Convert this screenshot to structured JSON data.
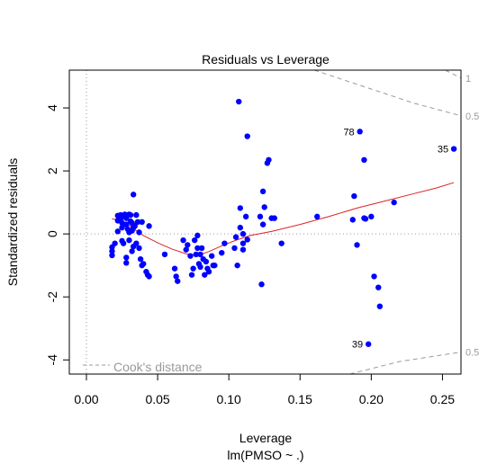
{
  "chart_data": {
    "type": "scatter",
    "title": "Residuals vs Leverage",
    "xlabel": "Leverage",
    "subtitle": "lm(PMSO ~ .)",
    "ylabel": "Standardized residuals",
    "xlim": [
      -0.012,
      0.263
    ],
    "ylim": [
      -4.45,
      5.2
    ],
    "x_ticks": [
      {
        "value": 0.0,
        "label": "0.00"
      },
      {
        "value": 0.05,
        "label": "0.05"
      },
      {
        "value": 0.1,
        "label": "0.10"
      },
      {
        "value": 0.15,
        "label": "0.15"
      },
      {
        "value": 0.2,
        "label": "0.20"
      },
      {
        "value": 0.25,
        "label": "0.25"
      }
    ],
    "y_ticks": [
      {
        "value": 4,
        "label": "4"
      },
      {
        "value": 2,
        "label": "2"
      },
      {
        "value": 0,
        "label": "0"
      },
      {
        "value": -2,
        "label": "-2"
      },
      {
        "value": -4,
        "label": "-4"
      }
    ],
    "point_color": "#0000ff",
    "smooth_color": "#dd2222",
    "reference_color": "#9a9a9a",
    "grid": false,
    "points": [
      [
        0.018,
        -0.42
      ],
      [
        0.018,
        -0.55
      ],
      [
        0.018,
        -0.68
      ],
      [
        0.02,
        -0.3
      ],
      [
        0.022,
        0.08
      ],
      [
        0.022,
        0.42
      ],
      [
        0.022,
        0.58
      ],
      [
        0.024,
        0.6
      ],
      [
        0.024,
        0.48
      ],
      [
        0.025,
        0.35
      ],
      [
        0.025,
        0.2
      ],
      [
        0.025,
        -0.22
      ],
      [
        0.026,
        -0.3
      ],
      [
        0.026,
        0.55
      ],
      [
        0.027,
        0.62
      ],
      [
        0.028,
        0.5
      ],
      [
        0.028,
        0.3
      ],
      [
        0.028,
        -0.75
      ],
      [
        0.028,
        -0.92
      ],
      [
        0.029,
        0.15
      ],
      [
        0.03,
        0.05
      ],
      [
        0.03,
        -0.2
      ],
      [
        0.03,
        0.62
      ],
      [
        0.031,
        0.4
      ],
      [
        0.031,
        0.6
      ],
      [
        0.032,
        0.35
      ],
      [
        0.032,
        -0.55
      ],
      [
        0.032,
        0.1
      ],
      [
        0.033,
        0.2
      ],
      [
        0.033,
        -0.4
      ],
      [
        0.033,
        1.25
      ],
      [
        0.034,
        0.25
      ],
      [
        0.035,
        0.6
      ],
      [
        0.035,
        -0.3
      ],
      [
        0.036,
        0.38
      ],
      [
        0.037,
        -0.45
      ],
      [
        0.037,
        0.05
      ],
      [
        0.038,
        -0.8
      ],
      [
        0.039,
        0.38
      ],
      [
        0.039,
        -1.0
      ],
      [
        0.04,
        -0.95
      ],
      [
        0.042,
        -1.2
      ],
      [
        0.043,
        -1.3
      ],
      [
        0.044,
        -1.35
      ],
      [
        0.044,
        0.25
      ],
      [
        0.055,
        -0.65
      ],
      [
        0.062,
        -1.1
      ],
      [
        0.063,
        -1.35
      ],
      [
        0.064,
        -1.5
      ],
      [
        0.068,
        -0.2
      ],
      [
        0.07,
        -0.5
      ],
      [
        0.071,
        -0.35
      ],
      [
        0.073,
        -0.7
      ],
      [
        0.074,
        -1.3
      ],
      [
        0.075,
        -1.1
      ],
      [
        0.076,
        -0.2
      ],
      [
        0.077,
        -0.65
      ],
      [
        0.078,
        -0.05
      ],
      [
        0.078,
        -0.45
      ],
      [
        0.079,
        -0.95
      ],
      [
        0.08,
        -0.65
      ],
      [
        0.08,
        -1.05
      ],
      [
        0.081,
        -0.45
      ],
      [
        0.082,
        -0.8
      ],
      [
        0.083,
        -1.3
      ],
      [
        0.084,
        -0.88
      ],
      [
        0.085,
        -1.1
      ],
      [
        0.086,
        -1.2
      ],
      [
        0.088,
        -0.7
      ],
      [
        0.089,
        -1.0
      ],
      [
        0.09,
        -1.0
      ],
      [
        0.095,
        -0.6
      ],
      [
        0.097,
        -0.3
      ],
      [
        0.104,
        -0.45
      ],
      [
        0.105,
        -0.1
      ],
      [
        0.106,
        -1.0
      ],
      [
        0.107,
        4.2
      ],
      [
        0.108,
        0.82
      ],
      [
        0.108,
        0.2
      ],
      [
        0.11,
        0.0
      ],
      [
        0.11,
        -0.5
      ],
      [
        0.11,
        -0.3
      ],
      [
        0.112,
        0.55
      ],
      [
        0.113,
        3.1
      ],
      [
        0.113,
        -0.18
      ],
      [
        0.122,
        0.55
      ],
      [
        0.123,
        -1.6
      ],
      [
        0.124,
        0.3
      ],
      [
        0.124,
        1.35
      ],
      [
        0.125,
        0.85
      ],
      [
        0.127,
        2.25
      ],
      [
        0.128,
        2.35
      ],
      [
        0.13,
        0.5
      ],
      [
        0.132,
        0.5
      ],
      [
        0.137,
        -0.3
      ],
      [
        0.162,
        0.55
      ],
      [
        0.187,
        0.45
      ],
      [
        0.188,
        1.2
      ],
      [
        0.19,
        -0.35
      ],
      [
        0.192,
        3.25
      ],
      [
        0.195,
        2.35
      ],
      [
        0.195,
        0.5
      ],
      [
        0.196,
        0.48
      ],
      [
        0.198,
        -3.5
      ],
      [
        0.2,
        0.55
      ],
      [
        0.202,
        -1.35
      ],
      [
        0.205,
        -1.7
      ],
      [
        0.206,
        -2.3
      ],
      [
        0.216,
        1.0
      ],
      [
        0.258,
        2.7
      ]
    ],
    "labeled_points": [
      {
        "label": "78",
        "x": 0.192,
        "y": 3.25
      },
      {
        "label": "35",
        "x": 0.258,
        "y": 2.7
      },
      {
        "label": "39",
        "x": 0.198,
        "y": -3.5
      }
    ],
    "smooth_line": [
      [
        0.018,
        0.48
      ],
      [
        0.025,
        0.42
      ],
      [
        0.03,
        0.28
      ],
      [
        0.035,
        0.1
      ],
      [
        0.04,
        -0.05
      ],
      [
        0.05,
        -0.28
      ],
      [
        0.06,
        -0.48
      ],
      [
        0.07,
        -0.63
      ],
      [
        0.078,
        -0.67
      ],
      [
        0.085,
        -0.58
      ],
      [
        0.095,
        -0.38
      ],
      [
        0.105,
        -0.2
      ],
      [
        0.115,
        -0.05
      ],
      [
        0.13,
        0.08
      ],
      [
        0.15,
        0.3
      ],
      [
        0.17,
        0.55
      ],
      [
        0.19,
        0.82
      ],
      [
        0.21,
        1.05
      ],
      [
        0.23,
        1.28
      ],
      [
        0.245,
        1.45
      ],
      [
        0.258,
        1.63
      ]
    ],
    "cooks_distance": {
      "legend": "Cook's distance",
      "contours": [
        {
          "label": "1",
          "side": "top",
          "points": [
            [
              0.252,
              5.2
            ],
            [
              0.263,
              4.95
            ]
          ]
        },
        {
          "label": "0.5",
          "side": "top",
          "points": [
            [
              0.16,
              5.2
            ],
            [
              0.2,
              4.6
            ],
            [
              0.23,
              4.15
            ],
            [
              0.263,
              3.75
            ]
          ]
        },
        {
          "label": "0.5",
          "side": "bottom",
          "points": [
            [
              0.185,
              -4.45
            ],
            [
              0.22,
              -4.05
            ],
            [
              0.263,
              -3.75
            ]
          ]
        }
      ]
    }
  }
}
